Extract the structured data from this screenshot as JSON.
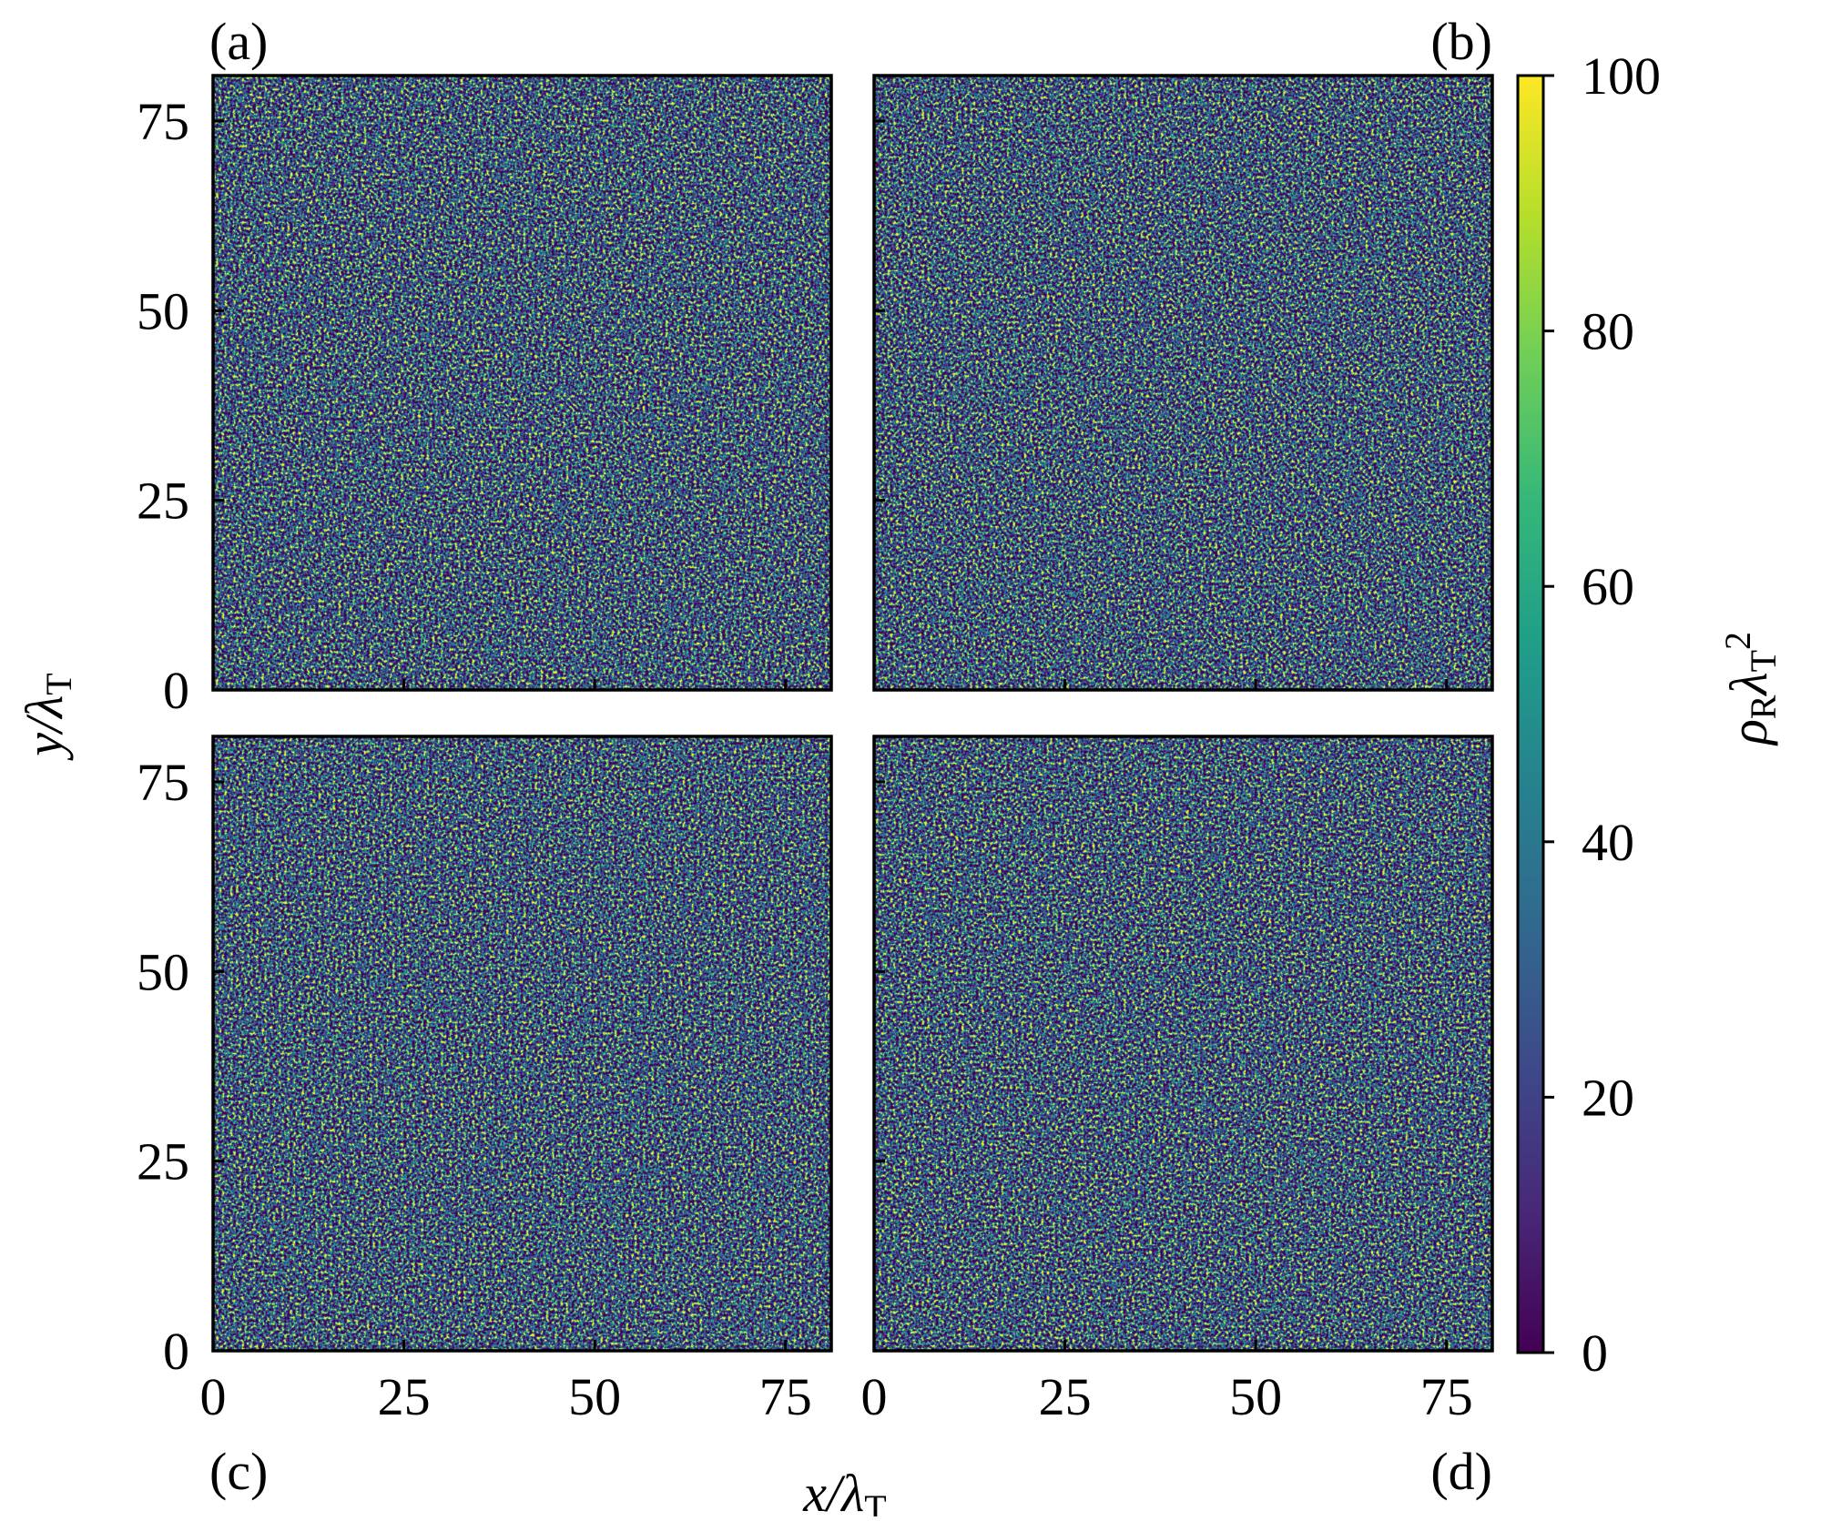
{
  "chart_data": {
    "type": "heatmap",
    "x_label": [
      {
        "t": "x/λ",
        "s": "base"
      },
      {
        "t": "T",
        "s": "sub"
      }
    ],
    "y_label": [
      {
        "t": "y/λ",
        "s": "base"
      },
      {
        "t": "T",
        "s": "sub"
      }
    ],
    "xlim": [
      0,
      81
    ],
    "ylim": [
      0,
      81
    ],
    "xticks": [
      0,
      25,
      50,
      75
    ],
    "yticks": [
      0,
      25,
      50,
      75
    ],
    "panels": [
      {
        "label": "(a)"
      },
      {
        "label": "(b)"
      },
      {
        "label": "(c)"
      },
      {
        "label": "(d)"
      }
    ],
    "colorbar": {
      "label": [
        {
          "t": "ρ",
          "s": "base"
        },
        {
          "t": "R",
          "s": "sub"
        },
        {
          "t": "λ",
          "s": "base"
        },
        {
          "t": "T",
          "s": "sub"
        },
        {
          "t": "2",
          "s": "sup"
        }
      ],
      "lim": [
        0,
        100
      ],
      "ticks": [
        0,
        20,
        40,
        60,
        80,
        100
      ],
      "colormap": [
        "#440154",
        "#482878",
        "#3e4989",
        "#31688e",
        "#26828e",
        "#1f9e89",
        "#35b779",
        "#6ece58",
        "#b5de2b",
        "#fde725"
      ]
    }
  }
}
